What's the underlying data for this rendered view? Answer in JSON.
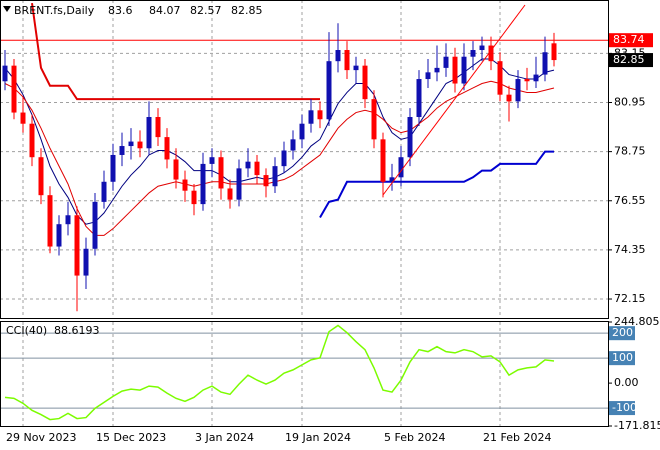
{
  "chart_data": [
    {
      "type": "candlestick",
      "title": "BRENT.fs,Daily",
      "categories": [
        null,
        null,
        "29 Nov 2023",
        null,
        null,
        null,
        null,
        null,
        null,
        null,
        null,
        null,
        "15 Dec 2023",
        null,
        null,
        null,
        null,
        null,
        null,
        null,
        null,
        null,
        null,
        "3 Jan 2024",
        null,
        null,
        null,
        null,
        null,
        null,
        null,
        null,
        null,
        "19 Jan 2024",
        null,
        null,
        null,
        null,
        null,
        null,
        null,
        null,
        null,
        null,
        "5 Feb 2024",
        null,
        null,
        null,
        null,
        null,
        null,
        null,
        null,
        null,
        null,
        "21 Feb 2024",
        null,
        null,
        null,
        null,
        null,
        null
      ],
      "ohlc": [
        [
          81.9,
          83.3,
          81.5,
          82.6
        ],
        [
          82.6,
          82.9,
          80.2,
          80.5
        ],
        [
          80.5,
          81.2,
          79.6,
          80.0
        ],
        [
          80.0,
          80.4,
          78.1,
          78.5
        ],
        [
          78.5,
          78.9,
          76.4,
          76.8
        ],
        [
          76.8,
          77.2,
          74.2,
          74.5
        ],
        [
          74.5,
          75.9,
          74.1,
          75.5
        ],
        [
          75.5,
          76.5,
          75.0,
          75.9
        ],
        [
          75.9,
          76.3,
          71.6,
          73.2
        ],
        [
          73.2,
          74.9,
          72.6,
          74.4
        ],
        [
          74.4,
          76.9,
          74.1,
          76.5
        ],
        [
          76.5,
          77.9,
          76.2,
          77.4
        ],
        [
          77.4,
          79.1,
          77.0,
          78.6
        ],
        [
          78.6,
          79.6,
          78.1,
          79.0
        ],
        [
          79.0,
          79.8,
          78.4,
          79.2
        ],
        [
          79.2,
          79.7,
          78.5,
          78.9
        ],
        [
          78.9,
          81.0,
          78.6,
          80.3
        ],
        [
          80.3,
          80.7,
          79.0,
          79.4
        ],
        [
          79.4,
          79.8,
          78.0,
          78.4
        ],
        [
          78.4,
          78.9,
          77.1,
          77.5
        ],
        [
          77.5,
          77.9,
          76.5,
          77.0
        ],
        [
          77.0,
          77.3,
          75.9,
          76.4
        ],
        [
          76.4,
          78.7,
          76.1,
          78.2
        ],
        [
          78.2,
          78.9,
          77.6,
          78.5
        ],
        [
          78.5,
          78.8,
          76.6,
          77.1
        ],
        [
          77.1,
          77.5,
          76.2,
          76.6
        ],
        [
          76.6,
          78.4,
          76.3,
          78.0
        ],
        [
          78.0,
          78.9,
          77.6,
          78.3
        ],
        [
          78.3,
          78.6,
          77.3,
          77.7
        ],
        [
          77.7,
          78.0,
          76.7,
          77.2
        ],
        [
          77.2,
          78.5,
          76.9,
          78.1
        ],
        [
          78.1,
          79.2,
          77.8,
          78.8
        ],
        [
          78.8,
          79.7,
          78.4,
          79.3
        ],
        [
          79.3,
          80.4,
          78.9,
          80.0
        ],
        [
          80.0,
          81.1,
          79.6,
          80.6
        ],
        [
          80.6,
          81.0,
          79.8,
          80.2
        ],
        [
          80.2,
          84.1,
          79.9,
          82.8
        ],
        [
          82.8,
          84.5,
          82.3,
          83.3
        ],
        [
          83.3,
          83.7,
          82.0,
          82.4
        ],
        [
          82.4,
          83.0,
          81.8,
          82.6
        ],
        [
          82.6,
          82.9,
          80.7,
          81.1
        ],
        [
          81.1,
          81.5,
          78.9,
          79.3
        ],
        [
          79.3,
          79.6,
          76.7,
          77.4
        ],
        [
          77.4,
          78.2,
          77.0,
          77.6
        ],
        [
          77.6,
          79.0,
          77.2,
          78.5
        ],
        [
          78.5,
          80.7,
          78.1,
          80.3
        ],
        [
          80.3,
          82.4,
          79.9,
          82.0
        ],
        [
          82.0,
          82.9,
          81.6,
          82.3
        ],
        [
          82.3,
          83.5,
          81.9,
          82.5
        ],
        [
          82.5,
          83.6,
          82.1,
          83.0
        ],
        [
          83.0,
          83.4,
          81.4,
          81.8
        ],
        [
          81.8,
          83.6,
          81.5,
          83.0
        ],
        [
          83.0,
          83.7,
          82.4,
          83.3
        ],
        [
          83.3,
          83.9,
          82.8,
          83.5
        ],
        [
          83.5,
          83.9,
          82.4,
          82.8
        ],
        [
          82.8,
          83.2,
          81.0,
          81.3
        ],
        [
          81.3,
          81.7,
          80.1,
          81.0
        ],
        [
          81.0,
          82.4,
          80.7,
          82.0
        ],
        [
          82.0,
          82.5,
          81.5,
          81.9
        ],
        [
          81.9,
          83.0,
          81.6,
          82.2
        ],
        [
          82.2,
          83.9,
          81.9,
          83.2
        ],
        [
          83.6,
          84.07,
          82.57,
          82.85
        ]
      ],
      "up_color": "#1010b0",
      "down_color": "#ff0000",
      "series": [
        {
          "color": "#000080",
          "width": 1,
          "values": [
            82.5,
            82.0,
            81.3,
            80.4,
            79.3,
            78.1,
            77.3,
            76.7,
            75.9,
            75.5,
            75.6,
            76.0,
            76.6,
            77.2,
            77.7,
            78.1,
            78.6,
            78.8,
            78.8,
            78.6,
            78.3,
            77.9,
            77.9,
            77.9,
            77.7,
            77.4,
            77.4,
            77.5,
            77.6,
            77.5,
            77.6,
            77.8,
            78.1,
            78.5,
            79.0,
            79.3,
            80.1,
            80.9,
            81.4,
            81.8,
            81.8,
            81.3,
            80.3,
            79.6,
            79.3,
            79.4,
            80.0,
            80.6,
            81.2,
            81.8,
            82.0,
            82.3,
            82.6,
            82.9,
            82.9,
            82.6,
            82.2,
            82.1,
            82.0,
            82.0,
            82.3,
            82.4
          ]
        },
        {
          "color": "#e00000",
          "width": 1,
          "values": [
            81.8,
            81.6,
            81.2,
            80.6,
            79.8,
            78.9,
            78.1,
            77.3,
            76.2,
            75.4,
            75.0,
            75.0,
            75.3,
            75.7,
            76.1,
            76.5,
            76.9,
            77.2,
            77.3,
            77.4,
            77.3,
            77.2,
            77.3,
            77.4,
            77.4,
            77.3,
            77.3,
            77.3,
            77.3,
            77.3,
            77.4,
            77.5,
            77.7,
            78.0,
            78.3,
            78.6,
            79.2,
            79.8,
            80.2,
            80.5,
            80.6,
            80.5,
            80.2,
            79.8,
            79.6,
            79.7,
            80.0,
            80.3,
            80.7,
            81.0,
            81.2,
            81.4,
            81.6,
            81.8,
            81.9,
            81.8,
            81.6,
            81.5,
            81.4,
            81.4,
            81.5,
            81.6
          ]
        },
        {
          "color": "#e00000",
          "width": 2,
          "values": [
            null,
            null,
            null,
            85.4,
            82.5,
            81.7,
            81.7,
            81.7,
            81.1,
            81.1,
            81.1,
            81.1,
            81.1,
            81.1,
            81.1,
            81.1,
            81.1,
            81.1,
            81.1,
            81.1,
            81.1,
            81.1,
            81.1,
            81.1,
            81.1,
            81.1,
            81.1,
            81.1,
            81.1,
            81.1,
            81.1,
            81.1,
            81.1,
            81.1,
            81.1,
            81.1,
            null,
            null,
            null,
            null,
            null,
            null,
            null,
            null,
            null,
            null,
            null,
            null,
            null,
            null,
            null,
            null,
            null,
            null,
            null,
            null,
            null,
            null,
            null,
            null,
            null,
            null
          ]
        },
        {
          "color": "#0000d0",
          "width": 2,
          "values": [
            null,
            null,
            null,
            null,
            null,
            null,
            null,
            null,
            null,
            null,
            null,
            null,
            null,
            null,
            null,
            null,
            null,
            null,
            null,
            null,
            null,
            null,
            null,
            null,
            null,
            null,
            null,
            null,
            null,
            null,
            null,
            null,
            null,
            null,
            null,
            75.8,
            76.5,
            76.6,
            77.4,
            77.4,
            77.4,
            77.4,
            77.4,
            77.4,
            77.4,
            77.4,
            77.4,
            77.4,
            77.4,
            77.4,
            77.4,
            77.4,
            77.6,
            77.9,
            77.9,
            78.2,
            78.2,
            78.2,
            78.2,
            78.2,
            78.75,
            78.75
          ]
        }
      ],
      "ylim": [
        71.3,
        85.45
      ],
      "yticks": [
        72.15,
        74.35,
        76.55,
        78.75,
        80.95,
        83.15
      ],
      "price_line": 83.74,
      "price_line_color": "#ff0000",
      "grid": true
    },
    {
      "type": "line",
      "title": "CCI(40)",
      "series": [
        {
          "color": "#7cfc00",
          "values": [
            -57,
            -61,
            -81,
            -109,
            -126,
            -146,
            -142,
            -121,
            -142,
            -138,
            -101,
            -77,
            -53,
            -32,
            -24,
            -28,
            -12,
            -16,
            -40,
            -61,
            -73,
            -57,
            -28,
            -12,
            -36,
            -45,
            -4,
            32,
            12,
            -4,
            12,
            40,
            53,
            73,
            93,
            101,
            206,
            231,
            202,
            166,
            134,
            61,
            -28,
            -36,
            12,
            85,
            134,
            126,
            146,
            126,
            121,
            134,
            126,
            105,
            109,
            85,
            32,
            53,
            61,
            65,
            93,
            88.6193
          ]
        }
      ],
      "ylim": [
        -171.815,
        244.805
      ],
      "yticks": [
        244.805,
        {
          "value": 0,
          "label": "0.00"
        },
        -171.815
      ],
      "levels": [
        200,
        100,
        -100
      ],
      "level_color": "#4682b4"
    }
  ]
}
